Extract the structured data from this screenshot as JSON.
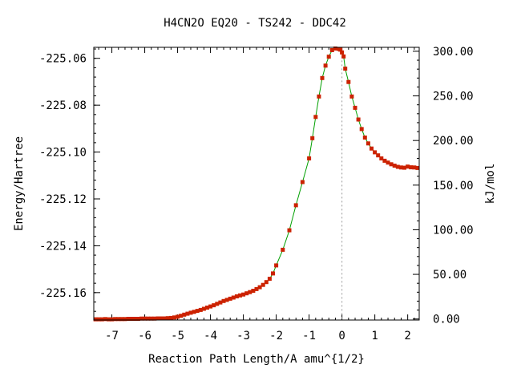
{
  "chart_data": {
    "type": "line",
    "title": "H4CN2O   EQ20 - TS242 - DDC42",
    "xlabel": "Reaction Path Length/A amu^{1/2}",
    "ylabel": "Energy/Hartree",
    "y2label": "kJ/mol",
    "xlim": [
      -7.55,
      2.35
    ],
    "ylim": [
      -225.1717,
      -225.0553
    ],
    "x_ticks": [
      "-7",
      "-6",
      "-5",
      "-4",
      "-3",
      "-2",
      "-1",
      "0",
      "1",
      "2"
    ],
    "x_tick_values": [
      -7,
      -6,
      -5,
      -4,
      -3,
      -2,
      -1,
      0,
      1,
      2
    ],
    "y_ticks": [
      "-225.06",
      "-225.08",
      "-225.10",
      "-225.12",
      "-225.14",
      "-225.16"
    ],
    "y_tick_values": [
      -225.06,
      -225.08,
      -225.1,
      -225.12,
      -225.14,
      -225.16
    ],
    "y2_ticks": [
      "300.00",
      "250.00",
      "200.00",
      "150.00",
      "100.00",
      "50.00",
      "0.00"
    ],
    "y2_tick_values": [
      300,
      250,
      200,
      150,
      100,
      50,
      0
    ],
    "y2_ref": {
      "hartree_at_zero": -225.17125,
      "kj_per_hartree": 2625.5
    },
    "ts_marker_x": 0.0,
    "grid": false,
    "colors": {
      "line": "#00a000",
      "points": "#cc2200",
      "ts_marker": "#999999",
      "axis": "#000000"
    },
    "series": [
      {
        "x": [
          -7.5,
          -7.4,
          -7.3,
          -7.2,
          -7.1,
          -7.0,
          -6.9,
          -6.8,
          -6.7,
          -6.6,
          -6.5,
          -6.4,
          -6.3,
          -6.2,
          -6.1,
          -6.0,
          -5.9,
          -5.8,
          -5.7,
          -5.6,
          -5.5,
          -5.4,
          -5.3,
          -5.2,
          -5.1,
          -5.0,
          -4.9,
          -4.8,
          -4.7,
          -4.6,
          -4.5,
          -4.4,
          -4.3,
          -4.2,
          -4.1,
          -4.0,
          -3.9,
          -3.8,
          -3.7,
          -3.6,
          -3.5,
          -3.4,
          -3.3,
          -3.2,
          -3.1,
          -3.0,
          -2.9,
          -2.8,
          -2.7,
          -2.6,
          -2.5,
          -2.4,
          -2.3,
          -2.2,
          -2.1,
          -2.0,
          -1.8,
          -1.6,
          -1.4,
          -1.2,
          -1.0,
          -0.9,
          -0.8,
          -0.7,
          -0.6,
          -0.5,
          -0.4,
          -0.3,
          -0.2,
          -0.1,
          -0.05,
          0.0,
          0.05,
          0.1,
          0.2,
          0.3,
          0.4,
          0.5,
          0.6,
          0.7,
          0.8,
          0.9,
          1.0,
          1.1,
          1.2,
          1.3,
          1.4,
          1.5,
          1.6,
          1.7,
          1.8,
          1.9,
          2.0,
          2.1,
          2.2,
          2.3
        ],
        "values": [
          -225.1714,
          -225.1714,
          -225.1714,
          -225.1713,
          -225.1714,
          -225.1714,
          -225.1713,
          -225.1713,
          -225.1713,
          -225.1713,
          -225.1712,
          -225.1712,
          -225.1712,
          -225.1712,
          -225.1711,
          -225.1711,
          -225.1711,
          -225.1711,
          -225.1711,
          -225.171,
          -225.171,
          -225.171,
          -225.1709,
          -225.1708,
          -225.1706,
          -225.1703,
          -225.1699,
          -225.1694,
          -225.169,
          -225.1686,
          -225.1682,
          -225.1678,
          -225.1674,
          -225.1669,
          -225.1664,
          -225.1659,
          -225.1654,
          -225.1648,
          -225.1642,
          -225.1636,
          -225.1631,
          -225.1626,
          -225.1621,
          -225.1616,
          -225.1612,
          -225.1608,
          -225.1603,
          -225.1598,
          -225.1592,
          -225.1585,
          -225.1577,
          -225.1567,
          -225.1555,
          -225.1541,
          -225.1518,
          -225.1484,
          -225.1417,
          -225.1334,
          -225.1227,
          -225.1128,
          -225.1027,
          -225.0941,
          -225.085,
          -225.0763,
          -225.0684,
          -225.0631,
          -225.0593,
          -225.0565,
          -225.0558,
          -225.056,
          -225.0563,
          -225.0575,
          -225.0592,
          -225.0644,
          -225.0701,
          -225.0763,
          -225.0811,
          -225.0861,
          -225.0902,
          -225.0938,
          -225.0963,
          -225.0985,
          -225.1001,
          -225.1014,
          -225.1027,
          -225.1037,
          -225.1045,
          -225.1052,
          -225.1058,
          -225.1063,
          -225.1066,
          -225.1067,
          -225.1062,
          -225.1065,
          -225.1066,
          -225.1068
        ]
      }
    ]
  }
}
